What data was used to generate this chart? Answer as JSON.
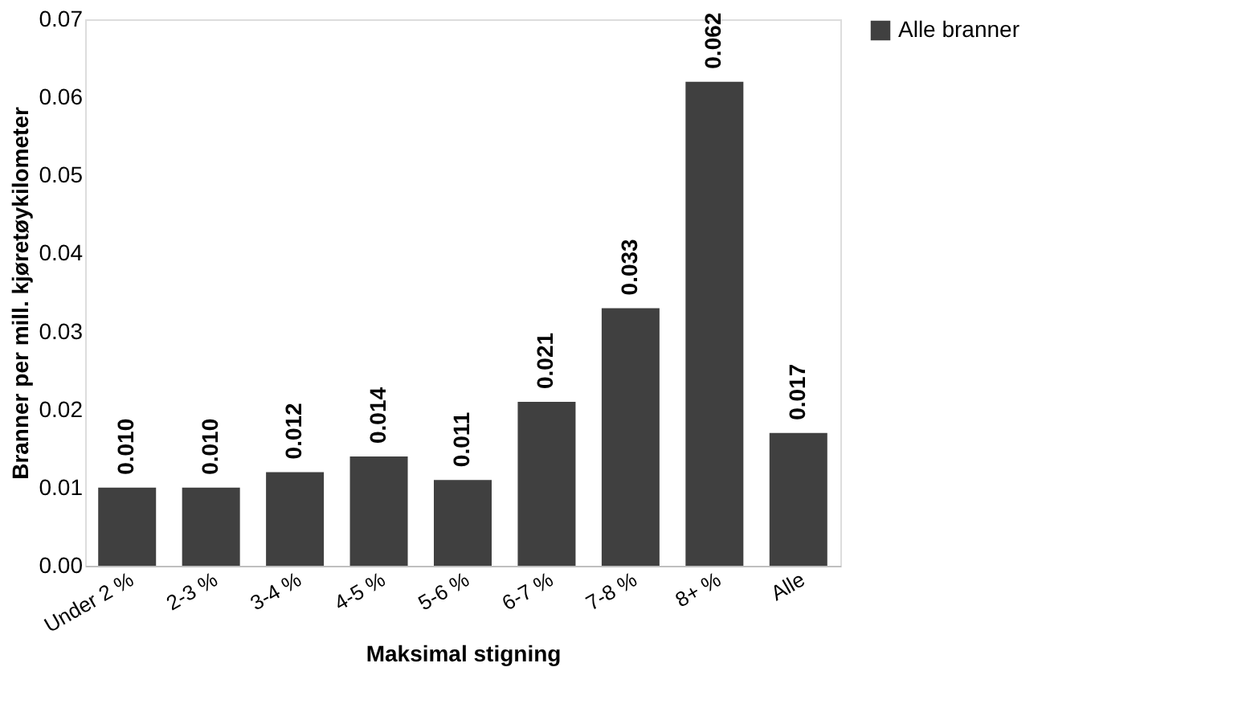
{
  "chart_data": {
    "type": "bar",
    "xlabel": "Maksimal stigning",
    "ylabel": "Branner per mill. kjøretøykilometer",
    "categories": [
      "Under 2 %",
      "2-3 %",
      "3-4 %",
      "4-5 %",
      "5-6 %",
      "6-7 %",
      "7-8 %",
      "8+ %",
      "Alle"
    ],
    "series": [
      {
        "name": "Alle branner",
        "color": "#404040",
        "values": [
          0.01,
          0.01,
          0.012,
          0.014,
          0.011,
          0.021,
          0.033,
          0.062,
          0.017
        ],
        "value_labels": [
          "0.010",
          "0.010",
          "0.012",
          "0.014",
          "0.011",
          "0.021",
          "0.033",
          "0.062",
          "0.017"
        ]
      }
    ],
    "ylim": [
      0,
      0.07
    ],
    "yticks": [
      {
        "value": 0,
        "label": "0.00"
      },
      {
        "value": 0.01,
        "label": "0.01"
      },
      {
        "value": 0.02,
        "label": "0.02"
      },
      {
        "value": 0.03,
        "label": "0.03"
      },
      {
        "value": 0.04,
        "label": "0.04"
      },
      {
        "value": 0.05,
        "label": "0.05"
      },
      {
        "value": 0.06,
        "label": "0.06"
      },
      {
        "value": 0.07,
        "label": "0.07"
      }
    ],
    "grid": false,
    "legend": "right"
  }
}
